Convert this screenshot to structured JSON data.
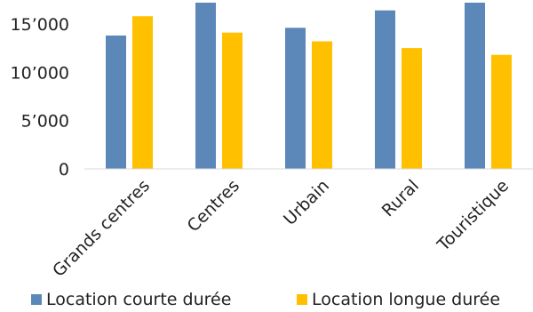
{
  "chart_data": {
    "type": "bar",
    "categories": [
      "Grands centres",
      "Centres",
      "Urbain",
      "Rural",
      "Touristique"
    ],
    "series": [
      {
        "name": "Location courte durée",
        "color": "#5b87b9",
        "values": [
          13800,
          17200,
          14600,
          16400,
          17200
        ]
      },
      {
        "name": "Location longue durée",
        "color": "#ffc000",
        "values": [
          15800,
          14100,
          13200,
          12500,
          11800
        ]
      }
    ],
    "ylim": [
      0,
      17200
    ],
    "yticks": [
      0,
      5000,
      10000,
      15000
    ],
    "ytick_labels": [
      "0",
      "5’000",
      "10’000",
      "15’000"
    ],
    "grid": false,
    "legend_position": "bottom"
  }
}
